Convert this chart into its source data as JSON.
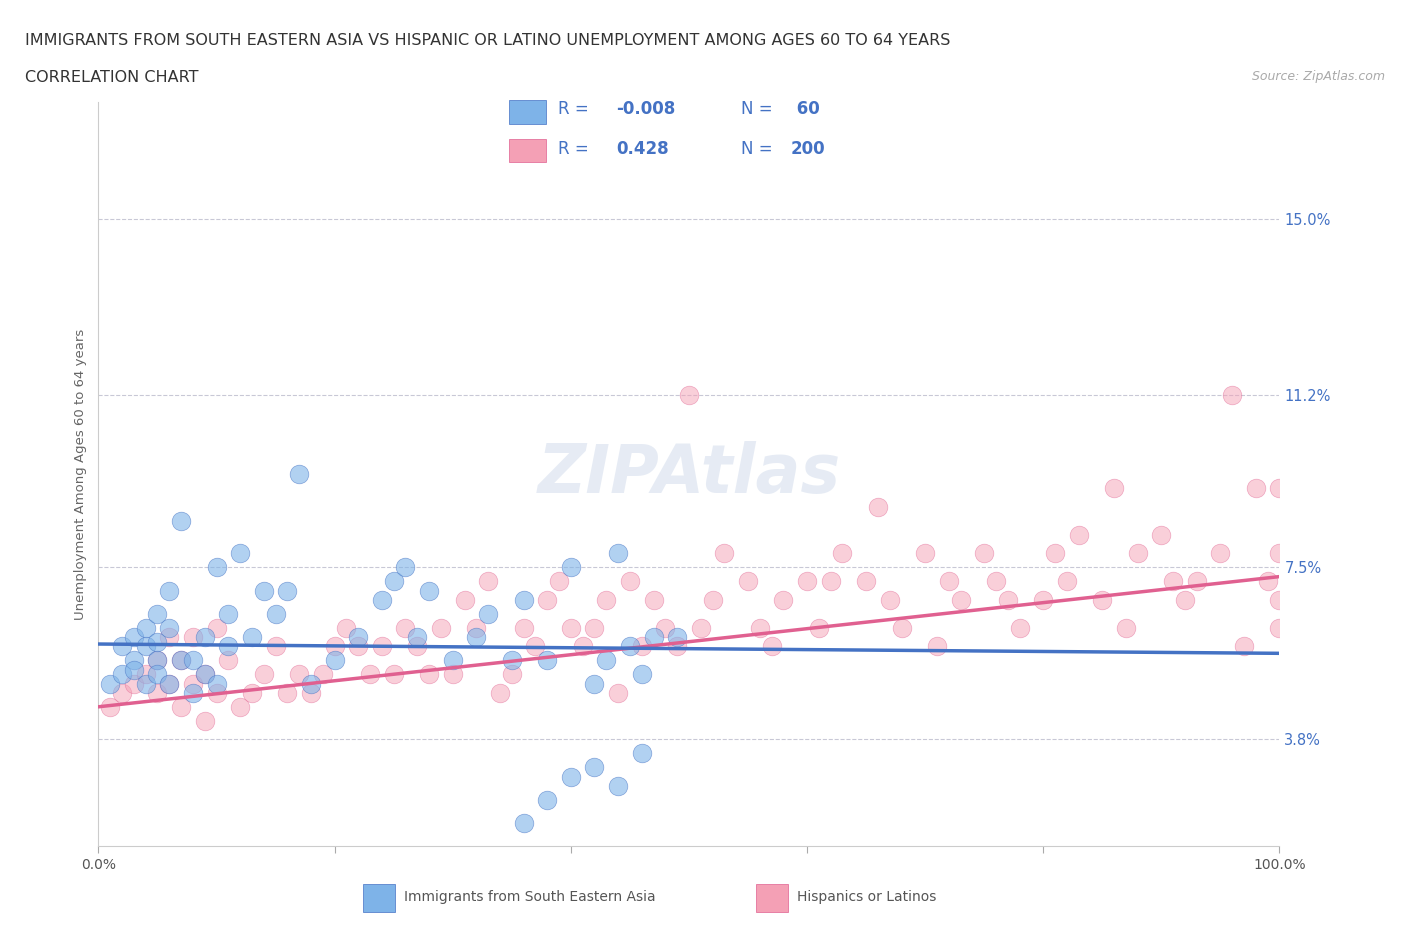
{
  "title_line1": "IMMIGRANTS FROM SOUTH EASTERN ASIA VS HISPANIC OR LATINO UNEMPLOYMENT AMONG AGES 60 TO 64 YEARS",
  "title_line2": "CORRELATION CHART",
  "source_text": "Source: ZipAtlas.com",
  "ylabel": "Unemployment Among Ages 60 to 64 years",
  "xlim": [
    0,
    100
  ],
  "ylim": [
    1.5,
    17.5
  ],
  "yticks": [
    3.8,
    7.5,
    11.2,
    15.0
  ],
  "yticklabels": [
    "3.8%",
    "7.5%",
    "11.2%",
    "15.0%"
  ],
  "hlines": [
    3.8,
    7.5,
    11.2,
    15.0
  ],
  "blue_color": "#7eb3e8",
  "pink_color": "#f4a0b5",
  "blue_line_color": "#4472c4",
  "pink_line_color": "#e06090",
  "legend_R1": "-0.008",
  "legend_N1": " 60",
  "legend_R2": "0.428",
  "legend_N2": "200",
  "legend_label1": "Immigrants from South Eastern Asia",
  "legend_label2": "Hispanics or Latinos",
  "blue_scatter_x": [
    1,
    2,
    2,
    3,
    3,
    3,
    4,
    4,
    4,
    5,
    5,
    5,
    5,
    6,
    6,
    6,
    7,
    7,
    8,
    8,
    9,
    9,
    10,
    10,
    11,
    11,
    12,
    13,
    14,
    15,
    16,
    17,
    18,
    20,
    22,
    24,
    25,
    26,
    27,
    28,
    30,
    32,
    33,
    35,
    36,
    38,
    40,
    42,
    43,
    44,
    45,
    46,
    47,
    49,
    36,
    38,
    40,
    42,
    44,
    46
  ],
  "blue_scatter_y": [
    5.0,
    5.2,
    5.8,
    5.5,
    6.0,
    5.3,
    5.8,
    6.2,
    5.0,
    5.5,
    6.5,
    5.9,
    5.2,
    5.0,
    6.2,
    7.0,
    5.5,
    8.5,
    4.8,
    5.5,
    5.2,
    6.0,
    5.0,
    7.5,
    5.8,
    6.5,
    7.8,
    6.0,
    7.0,
    6.5,
    7.0,
    9.5,
    5.0,
    5.5,
    6.0,
    6.8,
    7.2,
    7.5,
    6.0,
    7.0,
    5.5,
    6.0,
    6.5,
    5.5,
    6.8,
    5.5,
    7.5,
    5.0,
    5.5,
    7.8,
    5.8,
    5.2,
    6.0,
    6.0,
    2.0,
    2.5,
    3.0,
    3.2,
    2.8,
    3.5
  ],
  "pink_scatter_x": [
    1,
    2,
    3,
    4,
    5,
    5,
    6,
    6,
    7,
    7,
    8,
    8,
    9,
    9,
    10,
    10,
    11,
    12,
    13,
    14,
    15,
    16,
    17,
    18,
    19,
    20,
    21,
    22,
    23,
    24,
    25,
    26,
    27,
    28,
    29,
    30,
    31,
    32,
    33,
    34,
    35,
    36,
    37,
    38,
    39,
    40,
    41,
    42,
    43,
    44,
    45,
    46,
    47,
    48,
    49,
    50,
    51,
    52,
    53,
    55,
    56,
    57,
    58,
    60,
    61,
    62,
    63,
    65,
    66,
    67,
    68,
    70,
    71,
    72,
    73,
    75,
    76,
    77,
    78,
    80,
    81,
    82,
    83,
    85,
    86,
    87,
    88,
    90,
    91,
    92,
    93,
    95,
    96,
    97,
    98,
    99,
    100,
    100,
    100,
    100
  ],
  "pink_scatter_y": [
    4.5,
    4.8,
    5.0,
    5.2,
    4.8,
    5.5,
    5.0,
    6.0,
    4.5,
    5.5,
    5.0,
    6.0,
    4.2,
    5.2,
    4.8,
    6.2,
    5.5,
    4.5,
    4.8,
    5.2,
    5.8,
    4.8,
    5.2,
    4.8,
    5.2,
    5.8,
    6.2,
    5.8,
    5.2,
    5.8,
    5.2,
    6.2,
    5.8,
    5.2,
    6.2,
    5.2,
    6.8,
    6.2,
    7.2,
    4.8,
    5.2,
    6.2,
    5.8,
    6.8,
    7.2,
    6.2,
    5.8,
    6.2,
    6.8,
    4.8,
    7.2,
    5.8,
    6.8,
    6.2,
    5.8,
    11.2,
    6.2,
    6.8,
    7.8,
    7.2,
    6.2,
    5.8,
    6.8,
    7.2,
    6.2,
    7.2,
    7.8,
    7.2,
    8.8,
    6.8,
    6.2,
    7.8,
    5.8,
    7.2,
    6.8,
    7.8,
    7.2,
    6.8,
    6.2,
    6.8,
    7.8,
    7.2,
    8.2,
    6.8,
    9.2,
    6.2,
    7.8,
    8.2,
    7.2,
    6.8,
    7.2,
    7.8,
    11.2,
    5.8,
    9.2,
    7.2,
    9.2,
    6.8,
    6.2,
    7.8
  ],
  "blue_trend_x": [
    0,
    100
  ],
  "blue_trend_y": [
    5.85,
    5.65
  ],
  "pink_trend_x": [
    0,
    100
  ],
  "pink_trend_y": [
    4.5,
    7.3
  ]
}
